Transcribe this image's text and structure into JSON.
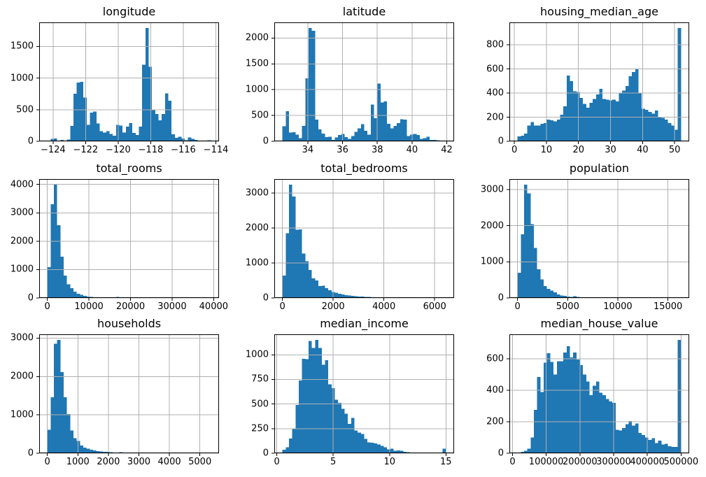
{
  "figure": {
    "bar_color": "#1f77b4",
    "grid_color": "#b0b0b0",
    "spine_color": "#000000",
    "tick_color": "#000000",
    "text_color": "#000000",
    "background": "#ffffff"
  },
  "chart_data": [
    {
      "type": "bar",
      "kind": "histogram",
      "title": "longitude",
      "grid": true,
      "legend": false,
      "bin_start": -124.35,
      "bin_width": 0.2008,
      "xlim": [
        -124.852,
        -113.808
      ],
      "ylim": [
        0,
        1880
      ],
      "xticks": [
        -124,
        -122,
        -120,
        -118,
        -116,
        -114
      ],
      "xtick_labels": [
        "−124",
        "−122",
        "−120",
        "−118",
        "−116",
        "−114"
      ],
      "yticks": [
        0,
        500,
        1000,
        1500
      ],
      "ytick_labels": [
        "0",
        "500",
        "1000",
        "1500"
      ],
      "values": [
        5,
        40,
        45,
        10,
        20,
        8,
        30,
        245,
        750,
        930,
        940,
        690,
        260,
        455,
        470,
        280,
        160,
        140,
        160,
        115,
        90,
        260,
        250,
        140,
        230,
        285,
        130,
        100,
        230,
        1210,
        1790,
        1180,
        490,
        430,
        330,
        430,
        760,
        640,
        110,
        55,
        70,
        45,
        15,
        60,
        40,
        20,
        10,
        5,
        4,
        18
      ]
    },
    {
      "type": "bar",
      "kind": "histogram",
      "title": "latitude",
      "grid": true,
      "legend": false,
      "bin_start": 32.54,
      "bin_width": 0.1882,
      "xlim": [
        32.07,
        42.42
      ],
      "xticks": [
        34,
        36,
        38,
        40,
        42
      ],
      "xtick_labels": [
        "34",
        "36",
        "38",
        "40",
        "42"
      ],
      "ylim": [
        0,
        2305
      ],
      "yticks": [
        0,
        500,
        1000,
        1500,
        2000
      ],
      "ytick_labels": [
        "0",
        "500",
        "1000",
        "1500",
        "2000"
      ],
      "values": [
        290,
        580,
        170,
        175,
        130,
        60,
        300,
        1220,
        2195,
        2140,
        420,
        230,
        150,
        80,
        85,
        30,
        75,
        120,
        140,
        80,
        50,
        100,
        180,
        250,
        330,
        200,
        130,
        710,
        450,
        1120,
        750,
        770,
        340,
        250,
        300,
        350,
        430,
        420,
        100,
        130,
        140,
        120,
        50,
        60,
        90,
        25,
        30,
        18,
        5,
        15
      ]
    },
    {
      "type": "bar",
      "kind": "histogram",
      "title": "housing_median_age",
      "grid": true,
      "legend": false,
      "bin_start": 1,
      "bin_width": 1.02,
      "xlim": [
        -1.55,
        54.55
      ],
      "xticks": [
        0,
        10,
        20,
        30,
        40,
        50
      ],
      "xtick_labels": [
        "0",
        "10",
        "20",
        "30",
        "40",
        "50"
      ],
      "ylim": [
        0,
        987
      ],
      "yticks": [
        0,
        200,
        400,
        600,
        800
      ],
      "ytick_labels": [
        "0",
        "200",
        "400",
        "600",
        "800"
      ],
      "values": [
        40,
        45,
        65,
        130,
        160,
        130,
        130,
        145,
        150,
        180,
        175,
        165,
        180,
        220,
        290,
        545,
        500,
        415,
        410,
        360,
        310,
        280,
        320,
        350,
        390,
        435,
        350,
        345,
        340,
        345,
        330,
        400,
        420,
        460,
        540,
        575,
        600,
        400,
        270,
        260,
        245,
        230,
        255,
        200,
        195,
        180,
        150,
        130,
        95,
        940
      ]
    },
    {
      "type": "bar",
      "kind": "histogram",
      "title": "total_rooms",
      "grid": true,
      "legend": false,
      "bin_start": 2,
      "bin_width": 786.4,
      "xlim": [
        -1964,
        41286
      ],
      "xticks": [
        0,
        10000,
        20000,
        30000,
        40000
      ],
      "xtick_labels": [
        "0",
        "10000",
        "20000",
        "30000",
        "40000"
      ],
      "ylim": [
        0,
        4190
      ],
      "yticks": [
        0,
        1000,
        2000,
        3000,
        4000
      ],
      "ytick_labels": [
        "0",
        "1000",
        "2000",
        "3000",
        "4000"
      ],
      "values": [
        1080,
        3300,
        3990,
        2560,
        1450,
        790,
        480,
        350,
        220,
        150,
        110,
        70,
        50,
        35,
        30,
        20,
        15,
        12,
        10,
        8,
        6,
        35,
        5,
        4,
        3,
        3,
        2,
        2,
        2,
        1,
        1,
        1,
        0,
        0,
        1,
        0,
        0,
        0,
        1,
        0,
        0,
        0,
        0,
        0,
        0,
        0,
        0,
        0,
        0,
        1
      ]
    },
    {
      "type": "bar",
      "kind": "histogram",
      "title": "total_bedrooms",
      "grid": true,
      "legend": false,
      "bin_start": 1,
      "bin_width": 128.9,
      "xlim": [
        -321,
        6767
      ],
      "xticks": [
        0,
        2000,
        4000,
        6000
      ],
      "xtick_labels": [
        "0",
        "2000",
        "4000",
        "6000"
      ],
      "ylim": [
        0,
        3400
      ],
      "yticks": [
        0,
        1000,
        2000,
        3000
      ],
      "ytick_labels": [
        "0",
        "1000",
        "2000",
        "3000"
      ],
      "values": [
        640,
        1850,
        3240,
        2900,
        1950,
        1960,
        1270,
        1050,
        800,
        560,
        500,
        340,
        350,
        280,
        220,
        175,
        150,
        120,
        100,
        85,
        70,
        60,
        50,
        45,
        40,
        35,
        30,
        25,
        22,
        20,
        18,
        15,
        12,
        10,
        9,
        8,
        7,
        6,
        5,
        5,
        4,
        4,
        3,
        3,
        2,
        2,
        2,
        1,
        1,
        1
      ]
    },
    {
      "type": "bar",
      "kind": "histogram",
      "title": "population",
      "grid": true,
      "legend": false,
      "bin_start": 3,
      "bin_width": 326,
      "xlim": [
        -812,
        17118
      ],
      "xticks": [
        0,
        5000,
        10000,
        15000
      ],
      "xtick_labels": [
        "0",
        "5000",
        "10000",
        "15000"
      ],
      "ylim": [
        0,
        3287
      ],
      "yticks": [
        0,
        1000,
        2000,
        3000
      ],
      "ytick_labels": [
        "0",
        "1000",
        "2000",
        "3000"
      ],
      "values": [
        700,
        1760,
        3130,
        2890,
        2040,
        1380,
        790,
        510,
        330,
        250,
        200,
        150,
        100,
        70,
        55,
        40,
        30,
        45,
        25,
        20,
        15,
        12,
        10,
        8,
        6,
        5,
        4,
        3,
        3,
        2,
        2,
        1,
        1,
        1,
        1,
        0,
        0,
        1,
        0,
        0,
        0,
        0,
        0,
        0,
        0,
        0,
        0,
        0,
        0,
        1
      ]
    },
    {
      "type": "bar",
      "kind": "histogram",
      "title": "households",
      "grid": true,
      "legend": false,
      "bin_start": 1,
      "bin_width": 107.1,
      "xlim": [
        -267,
        5626
      ],
      "xticks": [
        0,
        1000,
        2000,
        3000,
        4000,
        5000
      ],
      "xtick_labels": [
        "0",
        "1000",
        "2000",
        "3000",
        "4000",
        "5000"
      ],
      "ylim": [
        0,
        3098
      ],
      "yticks": [
        0,
        1000,
        2000,
        3000
      ],
      "ytick_labels": [
        "0",
        "1000",
        "2000",
        "3000"
      ],
      "values": [
        610,
        1460,
        2850,
        2950,
        2110,
        1460,
        1020,
        590,
        390,
        320,
        200,
        150,
        120,
        90,
        70,
        55,
        45,
        40,
        32,
        25,
        20,
        15,
        30,
        12,
        8,
        6,
        5,
        4,
        3,
        3,
        2,
        2,
        1,
        1,
        1,
        1,
        0,
        1,
        0,
        0,
        0,
        0,
        0,
        0,
        0,
        1,
        0,
        0,
        0,
        1
      ]
    },
    {
      "type": "bar",
      "kind": "histogram",
      "title": "median_income",
      "grid": true,
      "legend": false,
      "bin_start": 0.4999,
      "bin_width": 0.29,
      "xlim": [
        -0.225,
        15.725
      ],
      "xticks": [
        0,
        5,
        10,
        15
      ],
      "xtick_labels": [
        "0",
        "5",
        "10",
        "15"
      ],
      "ylim": [
        0,
        1208
      ],
      "yticks": [
        0,
        250,
        500,
        750,
        1000
      ],
      "ytick_labels": [
        "0",
        "250",
        "500",
        "750",
        "1000"
      ],
      "values": [
        35,
        60,
        150,
        250,
        490,
        740,
        960,
        955,
        1140,
        1070,
        1150,
        1070,
        900,
        945,
        700,
        660,
        545,
        510,
        450,
        400,
        300,
        360,
        230,
        210,
        195,
        145,
        110,
        105,
        100,
        90,
        75,
        60,
        40,
        45,
        25,
        30,
        25,
        15,
        10,
        8,
        6,
        5,
        5,
        3,
        4,
        2,
        2,
        2,
        2,
        45
      ]
    },
    {
      "type": "bar",
      "kind": "histogram",
      "title": "median_house_value",
      "grid": true,
      "legend": false,
      "bin_start": 14999,
      "bin_width": 9700,
      "xlim": [
        -9251,
        524251
      ],
      "xticks": [
        0,
        100000,
        200000,
        300000,
        400000,
        500000
      ],
      "xtick_labels": [
        "0",
        "100000",
        "200000",
        "300000",
        "400000",
        "500000"
      ],
      "ylim": [
        0,
        756
      ],
      "yticks": [
        0,
        200,
        400,
        600
      ],
      "ytick_labels": [
        "0",
        "200",
        "400",
        "600"
      ],
      "values": [
        5,
        10,
        15,
        30,
        100,
        275,
        485,
        390,
        575,
        635,
        580,
        500,
        585,
        585,
        640,
        680,
        610,
        640,
        595,
        560,
        500,
        455,
        370,
        430,
        455,
        385,
        370,
        345,
        330,
        320,
        150,
        145,
        160,
        185,
        205,
        175,
        190,
        130,
        115,
        100,
        85,
        95,
        65,
        80,
        55,
        60,
        45,
        40,
        40,
        720
      ]
    }
  ]
}
